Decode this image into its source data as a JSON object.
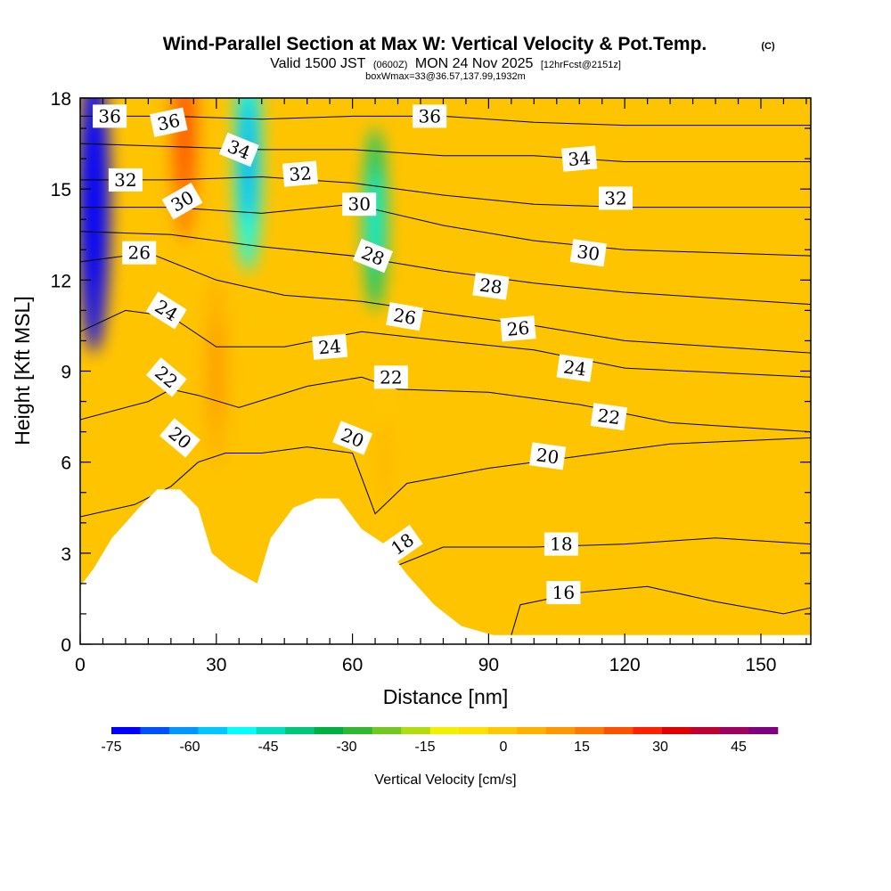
{
  "title": {
    "main": "Wind-Parallel Section at Max W: Vertical Velocity & Pot.Temp.",
    "copyright": "(C)",
    "valid": "Valid 1500 JST",
    "zulu": "(0600Z)",
    "date": "MON 24 Nov 2025",
    "fcst": "[12hrFcst@2151z]",
    "box": "boxWmax=33@36.57,137.99,1932m"
  },
  "chart_data": {
    "type": "heatmap",
    "subtype": "vertical cross-section: filled vertical velocity with potential temperature contours",
    "xlabel": "Distance [nm]",
    "ylabel": "Height [Kft MSL]",
    "xlim": [
      0,
      161
    ],
    "ylim": [
      0,
      18
    ],
    "xticks": [
      0,
      30,
      60,
      90,
      120,
      150
    ],
    "yticks": [
      0,
      3,
      6,
      9,
      12,
      15,
      18
    ],
    "grid": false,
    "colorbar": {
      "label": "Vertical Velocity [cm/s]",
      "min": -75,
      "max": 52.5,
      "step": 7.5,
      "tick_values": [
        -75,
        -60,
        -45,
        -30,
        -15,
        0,
        15,
        30,
        45
      ],
      "colors": [
        "#0000ff",
        "#0050ff",
        "#0096ff",
        "#00c8ff",
        "#00ffff",
        "#00e0c0",
        "#00c878",
        "#00b040",
        "#30b830",
        "#70c820",
        "#b0dc10",
        "#f0f000",
        "#ffe000",
        "#ffc800",
        "#ffb000",
        "#ff9800",
        "#ff7800",
        "#ff5000",
        "#ff2000",
        "#e00000",
        "#c00030",
        "#a00060",
        "#800080"
      ]
    },
    "terrain_profile": [
      {
        "x": 0,
        "y": 1.9
      },
      {
        "x": 3,
        "y": 2.5
      },
      {
        "x": 7,
        "y": 3.5
      },
      {
        "x": 13,
        "y": 4.5
      },
      {
        "x": 17,
        "y": 5.1
      },
      {
        "x": 22,
        "y": 5.1
      },
      {
        "x": 26,
        "y": 4.5
      },
      {
        "x": 29,
        "y": 3.0
      },
      {
        "x": 33,
        "y": 2.5
      },
      {
        "x": 39,
        "y": 2.0
      },
      {
        "x": 42,
        "y": 3.5
      },
      {
        "x": 47,
        "y": 4.5
      },
      {
        "x": 52,
        "y": 4.8
      },
      {
        "x": 57,
        "y": 4.8
      },
      {
        "x": 62,
        "y": 3.8
      },
      {
        "x": 67,
        "y": 3.3
      },
      {
        "x": 72,
        "y": 2.3
      },
      {
        "x": 78,
        "y": 1.3
      },
      {
        "x": 84,
        "y": 0.6
      },
      {
        "x": 91,
        "y": 0.3
      },
      {
        "x": 161,
        "y": 0.3
      }
    ],
    "w_features": [
      {
        "x": 3,
        "y": 14.5,
        "w": -70
      },
      {
        "x": 23,
        "y": 17,
        "w": 45
      },
      {
        "x": 30,
        "y": 9,
        "w": 32
      },
      {
        "x": 37,
        "y": 16,
        "w": -45
      },
      {
        "x": 65,
        "y": 14,
        "w": -30
      },
      {
        "x": 67,
        "y": 6,
        "w": 25
      }
    ],
    "isentropes": [
      {
        "theta": 16,
        "label_at": {
          "x": 107,
          "y": 1.7
        },
        "points": [
          [
            95,
            0.3
          ],
          [
            97,
            1.3
          ],
          [
            110,
            1.7
          ],
          [
            125,
            1.9
          ],
          [
            140,
            1.4
          ],
          [
            155,
            1.0
          ],
          [
            161,
            1.2
          ]
        ]
      },
      {
        "theta": 18,
        "label_at": {
          "x": 71,
          "y": 3.3
        },
        "points": [
          [
            70,
            2.6
          ],
          [
            80,
            3.2
          ],
          [
            100,
            3.2
          ],
          [
            120,
            3.3
          ],
          [
            140,
            3.5
          ],
          [
            161,
            3.3
          ]
        ]
      },
      {
        "theta": 20,
        "label_at": {
          "x": 22,
          "y": 6.8
        },
        "points": [
          [
            0,
            4.2
          ],
          [
            12,
            4.6
          ],
          [
            20,
            5.2
          ],
          [
            26,
            6.0
          ],
          [
            32,
            6.3
          ],
          [
            40,
            6.3
          ],
          [
            50,
            6.5
          ],
          [
            60,
            6.3
          ],
          [
            65,
            4.3
          ],
          [
            72,
            5.3
          ],
          [
            90,
            5.8
          ],
          [
            110,
            6.2
          ],
          [
            130,
            6.6
          ],
          [
            161,
            6.8
          ]
        ]
      },
      {
        "theta": 22,
        "label_at": {
          "x": 19,
          "y": 8.8
        },
        "points": [
          [
            0,
            7.4
          ],
          [
            15,
            8.0
          ],
          [
            20,
            8.4
          ],
          [
            26,
            8.2
          ],
          [
            35,
            7.8
          ],
          [
            50,
            8.5
          ],
          [
            62,
            8.8
          ],
          [
            70,
            8.4
          ],
          [
            90,
            8.3
          ],
          [
            110,
            7.9
          ],
          [
            130,
            7.3
          ],
          [
            161,
            7.0
          ]
        ]
      },
      {
        "theta": 24,
        "label_at": {
          "x": 19,
          "y": 11.0
        },
        "points": [
          [
            0,
            10.3
          ],
          [
            10,
            11.0
          ],
          [
            20,
            10.8
          ],
          [
            30,
            9.8
          ],
          [
            45,
            9.8
          ],
          [
            62,
            10.3
          ],
          [
            80,
            10.0
          ],
          [
            100,
            9.7
          ],
          [
            120,
            9.1
          ],
          [
            161,
            8.8
          ]
        ]
      },
      {
        "theta": 26,
        "label_at": {
          "x": 13,
          "y": 12.9
        },
        "points": [
          [
            0,
            12.6
          ],
          [
            15,
            12.9
          ],
          [
            30,
            12.0
          ],
          [
            45,
            11.5
          ],
          [
            62,
            11.3
          ],
          [
            80,
            10.9
          ],
          [
            100,
            10.5
          ],
          [
            120,
            10.0
          ],
          [
            161,
            9.6
          ]
        ]
      },
      {
        "theta": 28,
        "label_at": {
          "x": 64,
          "y": 12.8
        },
        "points": [
          [
            0,
            13.6
          ],
          [
            20,
            13.5
          ],
          [
            40,
            13.1
          ],
          [
            60,
            12.8
          ],
          [
            80,
            12.3
          ],
          [
            100,
            11.9
          ],
          [
            120,
            11.6
          ],
          [
            161,
            11.2
          ]
        ]
      },
      {
        "theta": 30,
        "label_at": {
          "x": 22,
          "y": 14.6
        },
        "points": [
          [
            0,
            14.4
          ],
          [
            20,
            14.4
          ],
          [
            40,
            14.2
          ],
          [
            60,
            14.5
          ],
          [
            80,
            13.8
          ],
          [
            100,
            13.3
          ],
          [
            120,
            13.0
          ],
          [
            161,
            12.8
          ]
        ]
      },
      {
        "theta": 32,
        "label_at": {
          "x": 10,
          "y": 15.3
        },
        "points": [
          [
            0,
            15.3
          ],
          [
            20,
            15.3
          ],
          [
            40,
            15.4
          ],
          [
            60,
            15.2
          ],
          [
            80,
            14.8
          ],
          [
            100,
            14.5
          ],
          [
            120,
            14.4
          ],
          [
            161,
            14.4
          ]
        ]
      },
      {
        "theta": 34,
        "label_at": {
          "x": 35,
          "y": 16.3
        },
        "points": [
          [
            0,
            16.5
          ],
          [
            20,
            16.4
          ],
          [
            40,
            16.3
          ],
          [
            60,
            16.3
          ],
          [
            80,
            16.1
          ],
          [
            100,
            16.1
          ],
          [
            120,
            15.9
          ],
          [
            161,
            15.9
          ]
        ]
      },
      {
        "theta": 36,
        "label_at": {
          "x": 6,
          "y": 17.4
        },
        "points": [
          [
            0,
            17.4
          ],
          [
            20,
            17.4
          ],
          [
            40,
            17.3
          ],
          [
            60,
            17.4
          ],
          [
            80,
            17.4
          ],
          [
            100,
            17.2
          ],
          [
            120,
            17.1
          ],
          [
            161,
            17.1
          ]
        ]
      }
    ],
    "contour_labels": [
      {
        "text": "36",
        "x": 6.5,
        "y": 17.4,
        "rot": 0
      },
      {
        "text": "36",
        "x": 19.5,
        "y": 17.2,
        "rot": -12
      },
      {
        "text": "36",
        "x": 77,
        "y": 17.4,
        "rot": 0
      },
      {
        "text": "34",
        "x": 35,
        "y": 16.3,
        "rot": 22
      },
      {
        "text": "34",
        "x": 110,
        "y": 16.0,
        "rot": -5
      },
      {
        "text": "32",
        "x": 10,
        "y": 15.3,
        "rot": 0
      },
      {
        "text": "32",
        "x": 48.5,
        "y": 15.5,
        "rot": -5
      },
      {
        "text": "32",
        "x": 118,
        "y": 14.7,
        "rot": 0
      },
      {
        "text": "30",
        "x": 22.5,
        "y": 14.6,
        "rot": -30
      },
      {
        "text": "30",
        "x": 61.5,
        "y": 14.5,
        "rot": 0
      },
      {
        "text": "30",
        "x": 112,
        "y": 12.9,
        "rot": 8
      },
      {
        "text": "28",
        "x": 64.5,
        "y": 12.8,
        "rot": 22
      },
      {
        "text": "28",
        "x": 90.5,
        "y": 11.8,
        "rot": 8
      },
      {
        "text": "26",
        "x": 13,
        "y": 12.9,
        "rot": 0
      },
      {
        "text": "26",
        "x": 71.5,
        "y": 10.8,
        "rot": 10
      },
      {
        "text": "26",
        "x": 96.5,
        "y": 10.4,
        "rot": -5
      },
      {
        "text": "24",
        "x": 19,
        "y": 11.0,
        "rot": 32
      },
      {
        "text": "24",
        "x": 55,
        "y": 9.8,
        "rot": -5
      },
      {
        "text": "24",
        "x": 109,
        "y": 9.1,
        "rot": 8
      },
      {
        "text": "22",
        "x": 19,
        "y": 8.8,
        "rot": 40
      },
      {
        "text": "22",
        "x": 68.5,
        "y": 8.8,
        "rot": 0
      },
      {
        "text": "22",
        "x": 116.5,
        "y": 7.5,
        "rot": 8
      },
      {
        "text": "20",
        "x": 22,
        "y": 6.8,
        "rot": 40
      },
      {
        "text": "20",
        "x": 60,
        "y": 6.8,
        "rot": 22
      },
      {
        "text": "20",
        "x": 103,
        "y": 6.2,
        "rot": 8
      },
      {
        "text": "18",
        "x": 71,
        "y": 3.3,
        "rot": -35
      },
      {
        "text": "18",
        "x": 106,
        "y": 3.3,
        "rot": 0
      },
      {
        "text": "16",
        "x": 106.5,
        "y": 1.7,
        "rot": 0
      }
    ]
  }
}
